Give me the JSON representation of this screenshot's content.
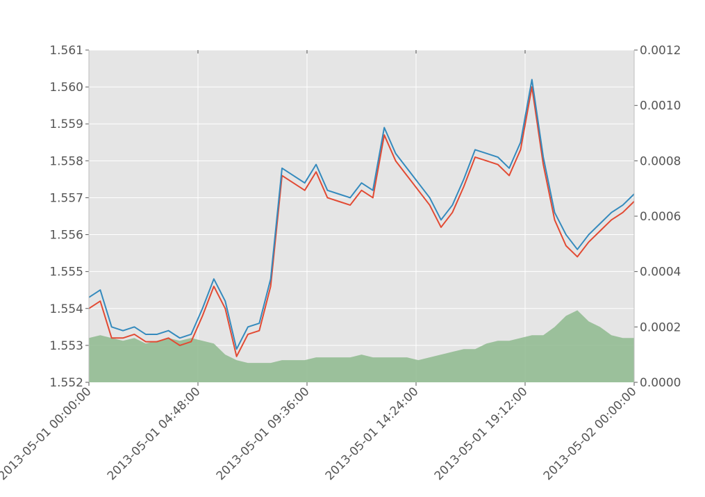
{
  "chart_data": {
    "type": "line",
    "title": "",
    "xlabel": "",
    "ylabel_left": "",
    "ylabel_right": "",
    "grid": true,
    "x_ticks": [
      "2013-05-01 00:00:00",
      "2013-05-01 04:48:00",
      "2013-05-01 09:36:00",
      "2013-05-01 14:24:00",
      "2013-05-01 19:12:00",
      "2013-05-02 00:00:00"
    ],
    "xlim": [
      "2013-05-01 00:00:00",
      "2013-05-02 00:00:00"
    ],
    "y_left_ticks": [
      "1.552",
      "1.553",
      "1.554",
      "1.555",
      "1.556",
      "1.557",
      "1.558",
      "1.559",
      "1.560",
      "1.561"
    ],
    "ylim_left": [
      1.552,
      1.561
    ],
    "y_right_ticks": [
      "0.0000",
      "0.0002",
      "0.0004",
      "0.0006",
      "0.0008",
      "0.0010",
      "0.0012"
    ],
    "ylim_right": [
      0,
      0.0012
    ],
    "x": [
      "2013-05-01 00:00:00",
      "2013-05-01 00:30:00",
      "2013-05-01 01:00:00",
      "2013-05-01 01:30:00",
      "2013-05-01 02:00:00",
      "2013-05-01 02:30:00",
      "2013-05-01 03:00:00",
      "2013-05-01 03:30:00",
      "2013-05-01 04:00:00",
      "2013-05-01 04:30:00",
      "2013-05-01 05:00:00",
      "2013-05-01 05:30:00",
      "2013-05-01 06:00:00",
      "2013-05-01 06:30:00",
      "2013-05-01 07:00:00",
      "2013-05-01 07:30:00",
      "2013-05-01 08:00:00",
      "2013-05-01 08:30:00",
      "2013-05-01 09:00:00",
      "2013-05-01 09:30:00",
      "2013-05-01 10:00:00",
      "2013-05-01 10:30:00",
      "2013-05-01 11:00:00",
      "2013-05-01 11:30:00",
      "2013-05-01 12:00:00",
      "2013-05-01 12:30:00",
      "2013-05-01 13:00:00",
      "2013-05-01 13:30:00",
      "2013-05-01 14:00:00",
      "2013-05-01 14:30:00",
      "2013-05-01 15:00:00",
      "2013-05-01 15:30:00",
      "2013-05-01 16:00:00",
      "2013-05-01 16:30:00",
      "2013-05-01 17:00:00",
      "2013-05-01 17:30:00",
      "2013-05-01 18:00:00",
      "2013-05-01 18:30:00",
      "2013-05-01 19:00:00",
      "2013-05-01 19:30:00",
      "2013-05-01 20:00:00",
      "2013-05-01 20:30:00",
      "2013-05-01 21:00:00",
      "2013-05-01 21:30:00",
      "2013-05-01 22:00:00",
      "2013-05-01 22:30:00",
      "2013-05-01 23:00:00",
      "2013-05-01 23:30:00",
      "2013-05-02 00:00:00"
    ],
    "series": [
      {
        "axis": "left",
        "color": "#348ABD",
        "values": [
          1.5543,
          1.5545,
          1.5535,
          1.5534,
          1.5535,
          1.5533,
          1.5533,
          1.5534,
          1.5532,
          1.5533,
          1.554,
          1.5548,
          1.5542,
          1.5529,
          1.5535,
          1.5536,
          1.5548,
          1.5578,
          1.5576,
          1.5574,
          1.5579,
          1.5572,
          1.5571,
          1.557,
          1.5574,
          1.5572,
          1.5589,
          1.5582,
          1.5578,
          1.5574,
          1.557,
          1.5564,
          1.5568,
          1.5575,
          1.5583,
          1.5582,
          1.5581,
          1.5578,
          1.5585,
          1.5602,
          1.5581,
          1.5566,
          1.556,
          1.5556,
          1.556,
          1.5563,
          1.5566,
          1.5568,
          1.5571
        ]
      },
      {
        "axis": "left",
        "color": "#E24A33",
        "values": [
          1.554,
          1.5542,
          1.5532,
          1.5532,
          1.5533,
          1.5531,
          1.5531,
          1.5532,
          1.553,
          1.5531,
          1.5538,
          1.5546,
          1.554,
          1.5527,
          1.5533,
          1.5534,
          1.5546,
          1.5576,
          1.5574,
          1.5572,
          1.5577,
          1.557,
          1.5569,
          1.5568,
          1.5572,
          1.557,
          1.5587,
          1.558,
          1.5576,
          1.5572,
          1.5568,
          1.5562,
          1.5566,
          1.5573,
          1.5581,
          1.558,
          1.5579,
          1.5576,
          1.5583,
          1.56,
          1.5579,
          1.5564,
          1.5557,
          1.5554,
          1.5558,
          1.5561,
          1.5564,
          1.5566,
          1.5569
        ]
      },
      {
        "axis": "right",
        "color": "#8EBA8E",
        "type": "area",
        "values": [
          0.00016,
          0.00017,
          0.00016,
          0.00015,
          0.00016,
          0.00014,
          0.00015,
          0.00016,
          0.00015,
          0.00016,
          0.00015,
          0.00014,
          0.0001,
          8e-05,
          7e-05,
          7e-05,
          7e-05,
          8e-05,
          8e-05,
          8e-05,
          9e-05,
          9e-05,
          9e-05,
          9e-05,
          0.0001,
          9e-05,
          9e-05,
          9e-05,
          9e-05,
          8e-05,
          9e-05,
          0.0001,
          0.00011,
          0.00012,
          0.00012,
          0.00014,
          0.00015,
          0.00015,
          0.00016,
          0.00017,
          0.00017,
          0.0002,
          0.00024,
          0.00026,
          0.00022,
          0.0002,
          0.00017,
          0.00016,
          0.00016
        ]
      }
    ]
  }
}
